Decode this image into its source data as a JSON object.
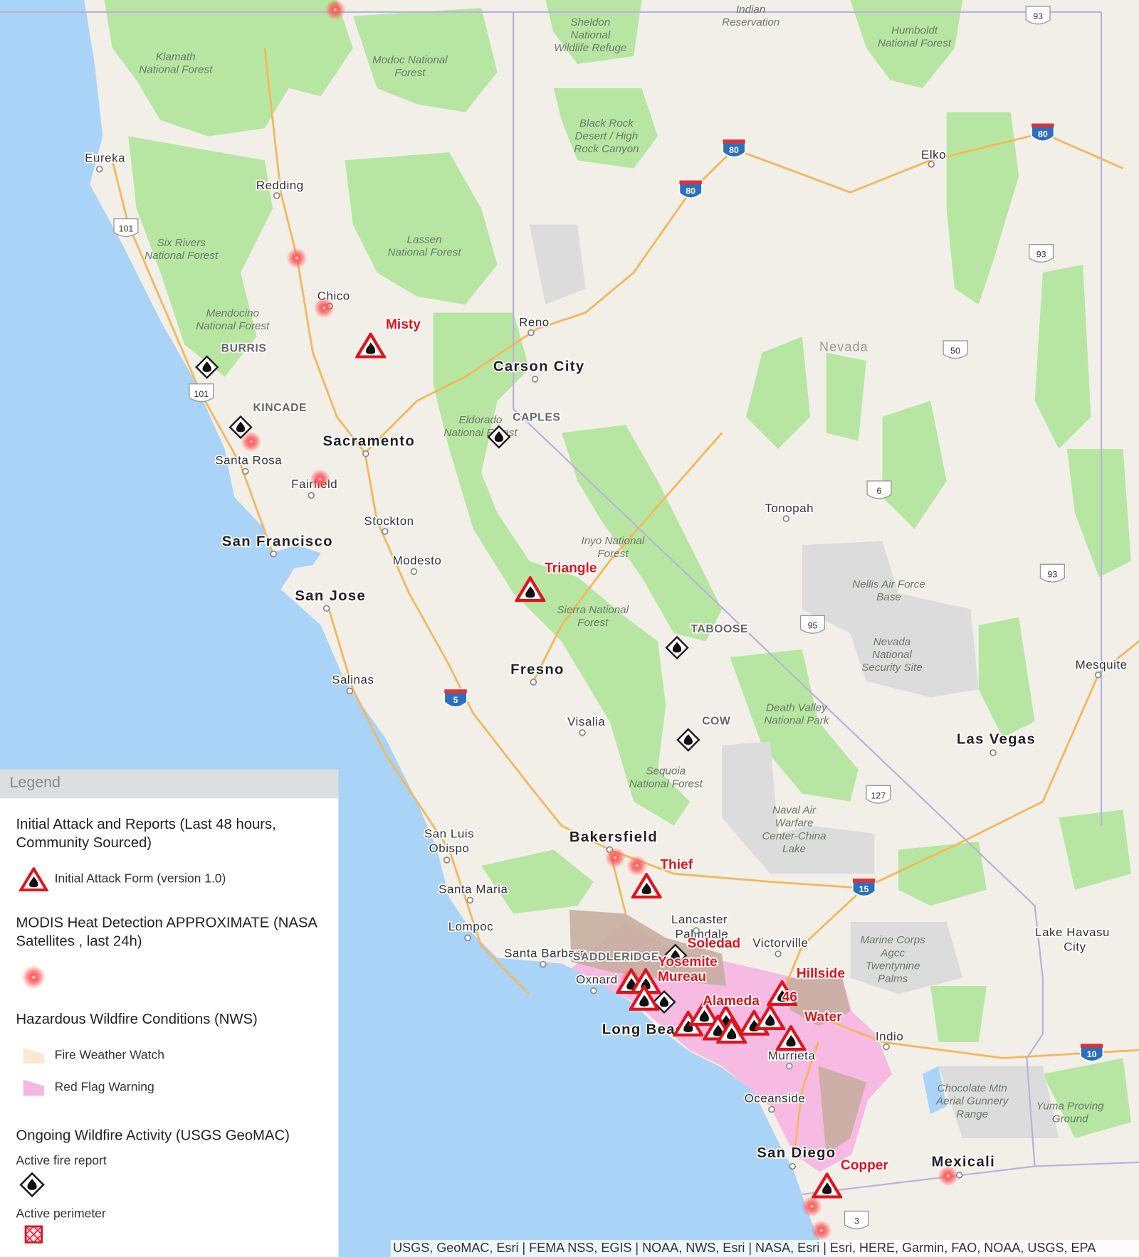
{
  "map": {
    "colors": {
      "ocean": "#a9d3f7",
      "land": "#f2efe9",
      "forest": "#b7e6a2",
      "red_flag": "#f7b6e2",
      "fire_weather_watch": "#fbe9cf",
      "burn_overlay": "#c7aea0",
      "road": "#f4b75a",
      "initial_attack": "#e0141e"
    },
    "big_cities": [
      "Sacramento",
      "San Francisco",
      "San Jose",
      "Fresno",
      "Bakersfield",
      "Las Vegas",
      "San Diego",
      "Mexicali",
      "Carson City",
      "Long Beach"
    ],
    "cities": [
      "Eureka",
      "Redding",
      "Chico",
      "Reno",
      "Santa Rosa",
      "Fairfield",
      "Stockton",
      "Modesto",
      "Salinas",
      "Visalia",
      "San Luis",
      "Obispo",
      "Santa Maria",
      "Lompoc",
      "Santa Barbara",
      "Oxnard",
      "Lancaster",
      "Palmdale",
      "Victorville",
      "Murrieta",
      "Oceanside",
      "Indio",
      "Lake Havasu",
      "City",
      "Elko",
      "Tonopah",
      "Mesquite"
    ],
    "state_label": "Nevada",
    "parks": [
      "Klamath",
      "National Forest",
      "Modoc National",
      "Forest",
      "Sheldon",
      "National",
      "Wildlife Refuge",
      "Indian",
      "Reservation",
      "Humboldt",
      "National Forest",
      "Black Rock",
      "Desert / High",
      "Rock Canyon",
      "Six Rivers",
      "National Forest",
      "Lassen",
      "National Forest",
      "Mendocino",
      "National Forest",
      "Eldorado",
      "National Forest",
      "Inyo National",
      "Forest",
      "Sierra National",
      "Forest",
      "Nellis Air Force",
      "Base",
      "Nevada",
      "National",
      "Security Site",
      "Death Valley",
      "National Park",
      "Sequoia",
      "National Forest",
      "Naval Air",
      "Warfare",
      "Center-China",
      "Lake",
      "Marine Corps",
      "Agcc",
      "Twentynine",
      "Palms",
      "Chocolate Mtn",
      "Aerial Gunnery",
      "Range",
      "Yuma Proving",
      "Ground"
    ],
    "geomac_fires": [
      "BURRIS",
      "KINCADE",
      "CAPLES",
      "TABOOSE",
      "COW",
      "SADDLERIDGE"
    ],
    "initial_attack_fires": [
      "Misty",
      "Triangle",
      "Thief",
      "Soledad",
      "Yosemite",
      "Mureau",
      "Hillside",
      "46",
      "Alameda",
      "Water",
      "Copper"
    ],
    "interstate_shields": [
      "80",
      "80",
      "80",
      "5",
      "15",
      "10"
    ],
    "highway_shields": [
      "93",
      "93",
      "93",
      "101",
      "101",
      "50",
      "6",
      "95",
      "127",
      "3"
    ],
    "attribution": "USGS, GeoMAC, Esri | FEMA NSS, EGIS | NOAA, NWS, Esri | NASA, Esri | Esri, HERE, Garmin, FAO, NOAA, USGS, EPA"
  },
  "legend": {
    "title": "Legend",
    "sections": [
      {
        "title": "Initial Attack and Reports (Last 48 hours, Community Sourced)",
        "items": [
          {
            "label": "Initial Attack Form (version 1.0)",
            "icon": "red-triangle-fire-icon"
          }
        ]
      },
      {
        "title": "MODIS Heat Detection APPROXIMATE (NASA Satellites , last 24h)",
        "items": [
          {
            "label": "",
            "icon": "heat-dot-icon"
          }
        ]
      },
      {
        "title": "Hazardous Wildfire Conditions (NWS)",
        "items": [
          {
            "label": "Fire Weather Watch",
            "icon": "swatch",
            "color": "#fbe9cf"
          },
          {
            "label": "Red Flag Warning",
            "icon": "swatch",
            "color": "#f7b6e2"
          }
        ]
      },
      {
        "title": "Ongoing Wildfire Activity (USGS GeoMAC)",
        "items": [
          {
            "label": "Active fire report",
            "icon": "diamond-fire-icon"
          },
          {
            "label": "Active perimeter",
            "icon": "perimeter-icon"
          }
        ]
      }
    ]
  }
}
